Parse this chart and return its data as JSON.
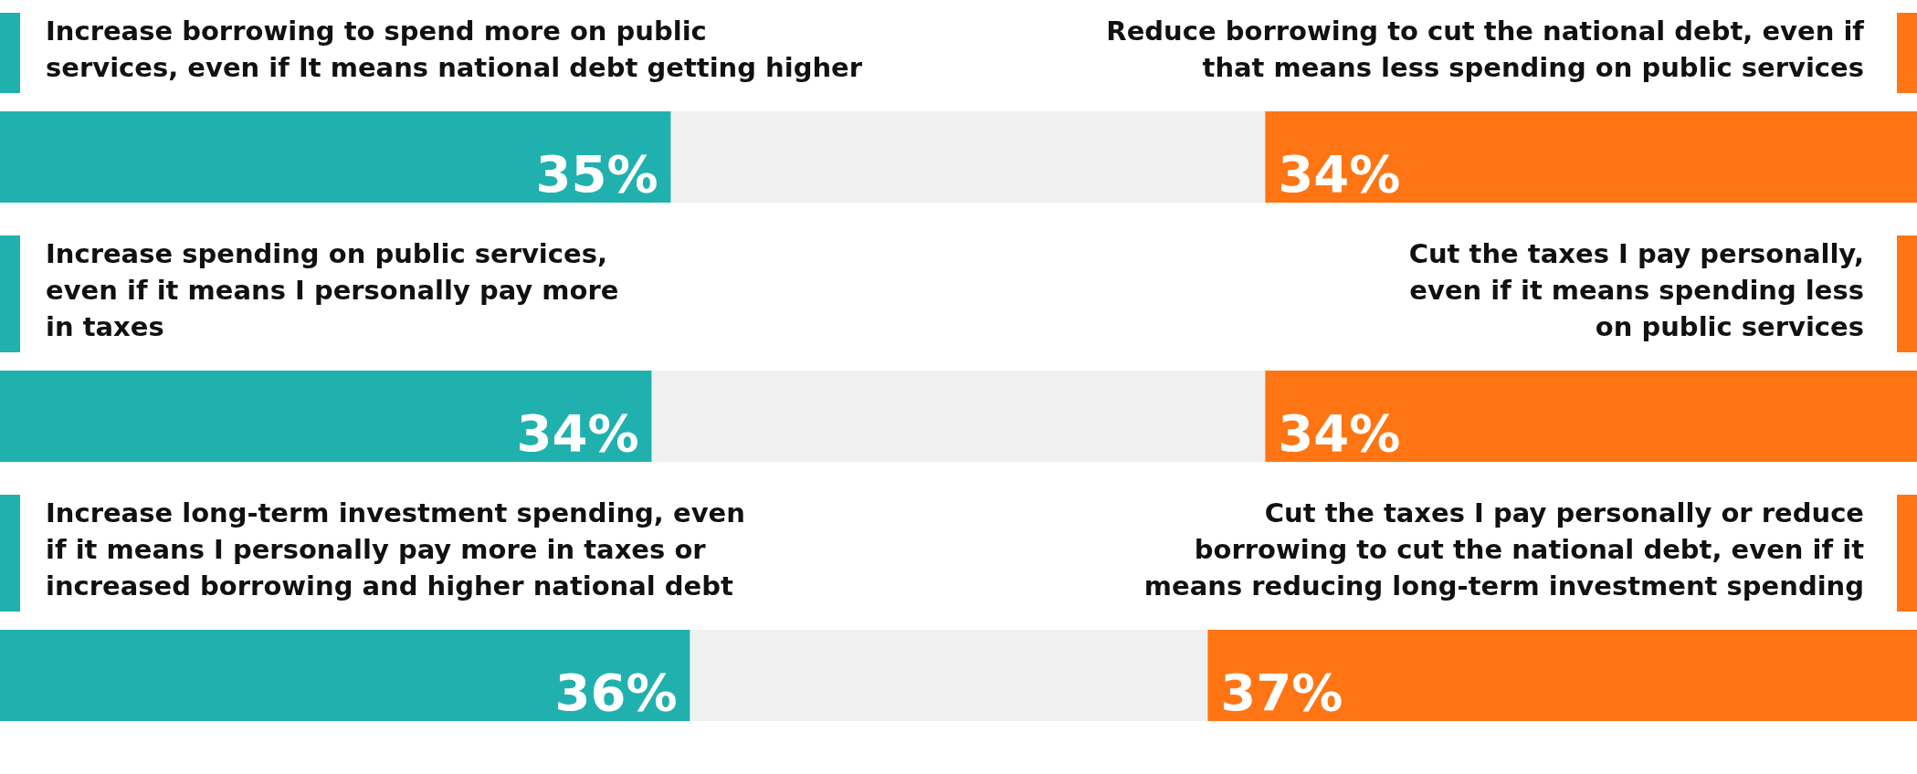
{
  "chart_data": [
    {
      "type": "bar",
      "orientation": "horizontal",
      "stacked": true,
      "categories": [
        null
      ],
      "xlim": [
        0,
        100
      ],
      "tick_labels": false,
      "series": [
        {
          "name": "Increase borrowing to spend more on public\nservices, even if It means national debt getting higher",
          "color": "#20b1af",
          "values": [
            35
          ],
          "value_labels": [
            "35%"
          ]
        },
        {
          "color": "#f0f0f0",
          "values": [
            31
          ],
          "value_labels": [
            null
          ]
        },
        {
          "name": "Reduce borrowing to cut the national debt, even if\nthat means less spending on public services",
          "color": "#ff7513",
          "values": [
            34
          ],
          "value_labels": [
            "34%"
          ]
        }
      ]
    },
    {
      "type": "bar",
      "orientation": "horizontal",
      "stacked": true,
      "categories": [
        null
      ],
      "xlim": [
        0,
        100
      ],
      "tick_labels": false,
      "series": [
        {
          "name": "Increase spending on public services,\neven if it means I personally pay more\nin taxes",
          "color": "#20b1af",
          "values": [
            34
          ],
          "value_labels": [
            "34%"
          ]
        },
        {
          "color": "#f0f0f0",
          "values": [
            32
          ],
          "value_labels": [
            null
          ]
        },
        {
          "name": "Cut the taxes I pay personally,\neven if it means spending less\non public services",
          "color": "#ff7513",
          "values": [
            34
          ],
          "value_labels": [
            "34%"
          ]
        }
      ]
    },
    {
      "type": "bar",
      "orientation": "horizontal",
      "stacked": true,
      "categories": [
        null
      ],
      "xlim": [
        0,
        100
      ],
      "tick_labels": false,
      "series": [
        {
          "name": "Increase long-term investment spending, even\nif it means I personally pay more in taxes or\nincreased borrowing and higher national debt",
          "color": "#20b1af",
          "values": [
            36
          ],
          "value_labels": [
            "36%"
          ]
        },
        {
          "color": "#f0f0f0",
          "values": [
            27
          ],
          "value_labels": [
            null
          ]
        },
        {
          "name": "Cut the taxes I pay personally or reduce\nborrowing to cut the national debt, even if it\nmeans reducing long-term investment spending",
          "color": "#ff7513",
          "values": [
            37
          ],
          "value_labels": [
            "37%"
          ]
        }
      ]
    }
  ]
}
